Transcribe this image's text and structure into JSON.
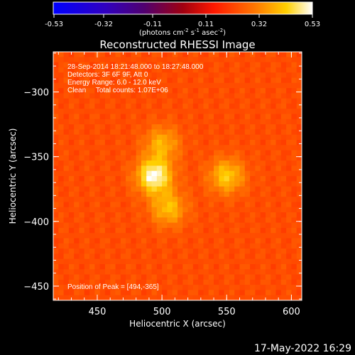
{
  "chart_data": {
    "type": "heatmap",
    "title": "Reconstructed RHESSI Image",
    "xlabel": "Heliocentric X (arcsec)",
    "ylabel": "Heliocentric Y (arcsec)",
    "xlim": [
      416,
      608
    ],
    "ylim": [
      -461,
      -269
    ],
    "x_ticks": [
      450,
      500,
      550,
      600
    ],
    "y_ticks": [
      -300,
      -350,
      -400,
      -450
    ],
    "colorbar": {
      "ticks": [
        "-0.53",
        "-0.32",
        "-0.11",
        "0.11",
        "0.32",
        "0.53"
      ],
      "range": [
        -0.53,
        0.53
      ],
      "unit_prefix": "(photons cm",
      "unit_sup1": "-2",
      "unit_mid1": " s",
      "unit_sup2": "-1",
      "unit_mid2": " asec",
      "unit_sup3": "-2",
      "unit_suffix": ")"
    },
    "background_level": 0.22,
    "sources": [
      {
        "x": 494,
        "y": -365,
        "peak": 0.53
      },
      {
        "x": 500,
        "y": -340,
        "peak": 0.38
      },
      {
        "x": 505,
        "y": -390,
        "peak": 0.4
      },
      {
        "x": 550,
        "y": -365,
        "peak": 0.42
      }
    ],
    "info_lines": [
      "28-Sep-2014 18:21:48.000 to 18:27:48.000",
      "Detectors: 3F 6F 9F, Att 0",
      "Energy Range: 6.0 - 12.0 keV",
      "Clean     Total counts: 1.07E+06"
    ],
    "peak_label": "Position of Peak = [494,-365]"
  },
  "footer": {
    "timestamp": "17-May-2022 16:29"
  }
}
